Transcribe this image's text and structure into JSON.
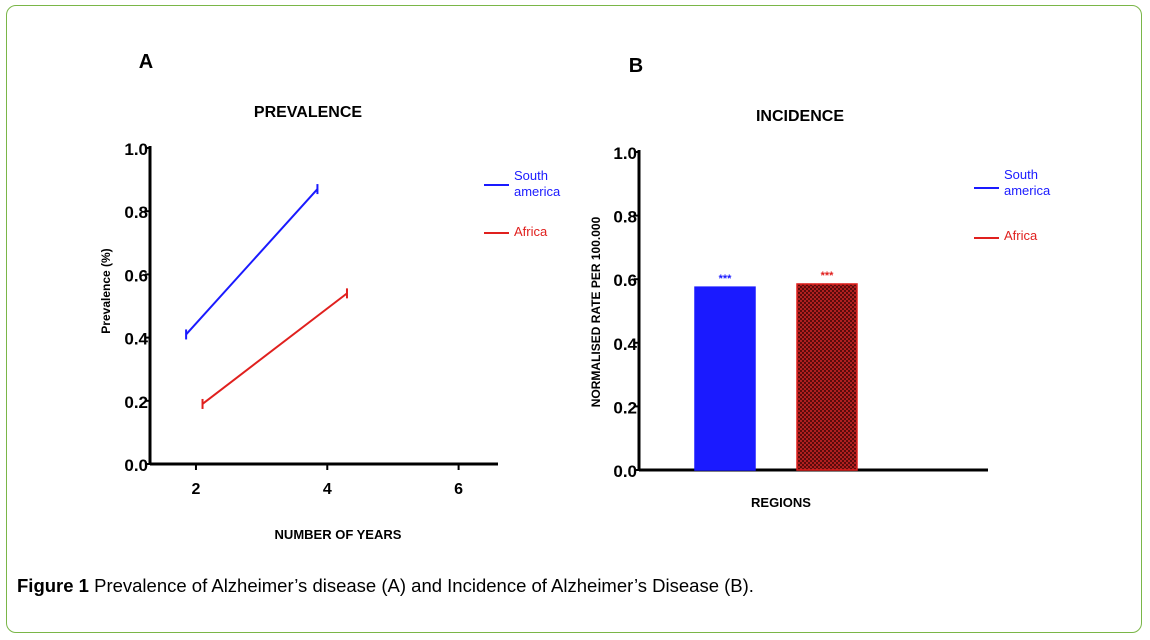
{
  "caption": {
    "label": "Figure 1",
    "text": "Prevalence of Alzheimer’s disease (A) and Incidence of Alzheimer’s Disease (B)."
  },
  "colors": {
    "frame": "#7ab648",
    "south_america": "#1a1aff",
    "africa": "#e0201e"
  },
  "chart_data": [
    {
      "panel": "A",
      "type": "line",
      "title": "PREVALENCE",
      "xlabel": "NUMBER OF YEARS",
      "ylabel": "Prevalence (%)",
      "xticks": [
        "2",
        "4",
        "6"
      ],
      "xtick_values": [
        2,
        4,
        6
      ],
      "xlim": [
        1.3,
        6.6
      ],
      "ylim": [
        0,
        1
      ],
      "yticks": [
        "0.0",
        "0.2",
        "0.4",
        "0.6",
        "0.8",
        "1.0"
      ],
      "ytick_values": [
        0,
        0.2,
        0.4,
        0.6,
        0.8,
        1.0
      ],
      "legend": [
        "South america",
        "Africa"
      ],
      "series": [
        {
          "name": "South america",
          "x": [
            1.85,
            3.85
          ],
          "y": [
            0.41,
            0.87
          ]
        },
        {
          "name": "Africa",
          "x": [
            2.1,
            4.3
          ],
          "y": [
            0.19,
            0.54
          ]
        }
      ]
    },
    {
      "panel": "B",
      "type": "bar",
      "title": "INCIDENCE",
      "xlabel": "REGIONS",
      "ylabel": "NORMALISED RATE PER 100.000",
      "ylim": [
        0,
        1
      ],
      "yticks": [
        "0.0",
        "0.2",
        "0.4",
        "0.6",
        "0.8",
        "1.0"
      ],
      "ytick_values": [
        0,
        0.2,
        0.4,
        0.6,
        0.8,
        1.0
      ],
      "legend": [
        "South america",
        "Africa"
      ],
      "categories": [
        "South america",
        "Africa"
      ],
      "values": [
        0.575,
        0.585
      ],
      "annotations": [
        "***",
        "***"
      ]
    }
  ]
}
